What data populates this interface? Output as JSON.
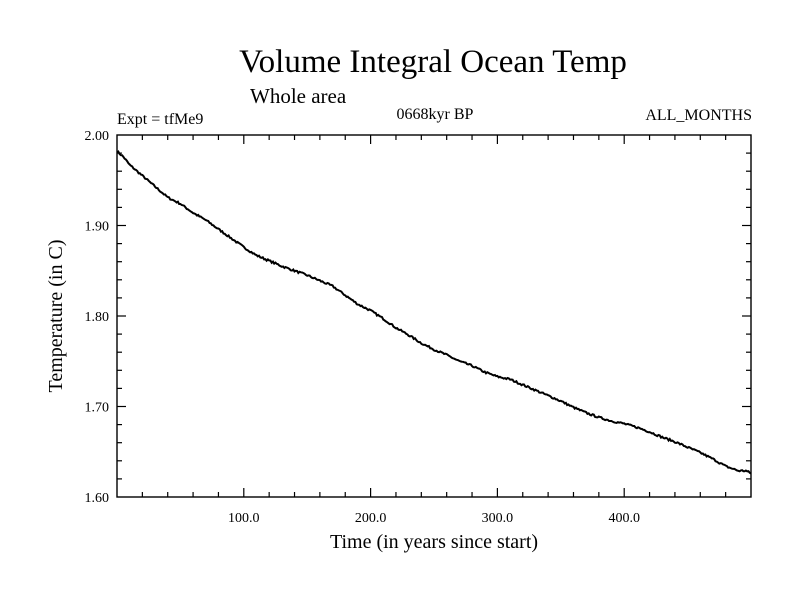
{
  "chart_data": {
    "type": "line",
    "title": "Volume Integral Ocean Temp",
    "subtitle": "Whole area",
    "left_label": "Expt = tfMe9",
    "center_label": "0668kyr BP",
    "right_label": "ALL_MONTHS",
    "xlabel": "Time (in years since start)",
    "ylabel": "Temperature (in C)",
    "xlim": [
      0,
      500
    ],
    "ylim": [
      1.6,
      2.0
    ],
    "x_ticks": [
      100,
      200,
      300,
      400
    ],
    "x_tick_labels": [
      "100.0",
      "200.0",
      "300.0",
      "400.0"
    ],
    "y_ticks": [
      1.6,
      1.7,
      1.8,
      1.9,
      2.0
    ],
    "y_tick_labels": [
      "1.60",
      "1.70",
      "1.80",
      "1.90",
      "2.00"
    ],
    "grid": false,
    "line_color": "#000000",
    "series": [
      {
        "x": [
          0,
          5,
          10,
          20,
          30,
          40,
          50,
          60,
          70,
          80,
          90,
          100,
          110,
          120,
          130,
          140,
          150,
          160,
          170,
          180,
          190,
          200,
          210,
          220,
          230,
          240,
          250,
          260,
          270,
          280,
          290,
          300,
          310,
          320,
          330,
          340,
          350,
          360,
          370,
          380,
          390,
          400,
          410,
          420,
          430,
          440,
          450,
          460,
          470,
          480,
          490,
          496,
          500
        ],
        "values": [
          1.982,
          1.976,
          1.967,
          1.955,
          1.943,
          1.931,
          1.924,
          1.914,
          1.906,
          1.896,
          1.886,
          1.876,
          1.867,
          1.861,
          1.855,
          1.85,
          1.845,
          1.839,
          1.833,
          1.823,
          1.813,
          1.806,
          1.797,
          1.787,
          1.779,
          1.77,
          1.763,
          1.757,
          1.75,
          1.745,
          1.738,
          1.733,
          1.73,
          1.724,
          1.718,
          1.712,
          1.706,
          1.699,
          1.693,
          1.688,
          1.684,
          1.681,
          1.677,
          1.672,
          1.666,
          1.661,
          1.655,
          1.649,
          1.642,
          1.634,
          1.629,
          1.629,
          1.626
        ]
      }
    ]
  }
}
